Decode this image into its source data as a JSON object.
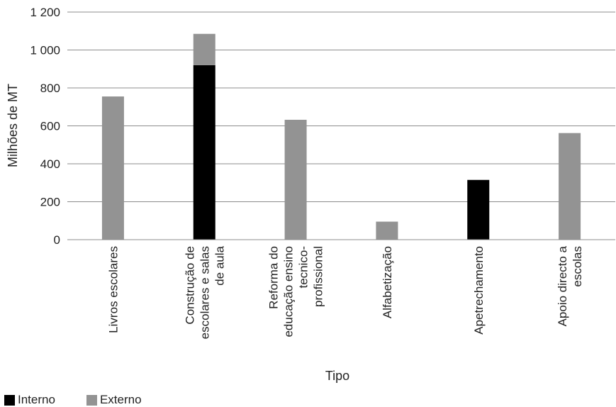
{
  "chart_data": {
    "type": "bar",
    "stacked": true,
    "categories": [
      [
        "Livros escolares"
      ],
      [
        "Construção de",
        "escolares e salas",
        "de aula"
      ],
      [
        "Reforma do",
        "educação ensino",
        "tecnico-",
        "profissional"
      ],
      [
        "Alfabetização"
      ],
      [
        "Apetrechamento"
      ],
      [
        "Apoio directo a",
        "escolas"
      ]
    ],
    "series": [
      {
        "name": "Interno",
        "color": "#000000",
        "values": [
          0,
          920,
          0,
          0,
          315,
          0
        ]
      },
      {
        "name": "Externo",
        "color": "#939393",
        "values": [
          755,
          165,
          632,
          95,
          0,
          562
        ]
      }
    ],
    "xlabel": "Tipo",
    "ylabel": "Milhões de MT",
    "ylim": [
      0,
      1200
    ],
    "yticks": [
      0,
      200,
      400,
      600,
      800,
      1000,
      1200
    ],
    "ytick_labels": [
      "0",
      "200",
      "400",
      "600",
      "800",
      "1 000",
      "1 200"
    ],
    "grid": true,
    "legend_position": "bottom-left"
  }
}
